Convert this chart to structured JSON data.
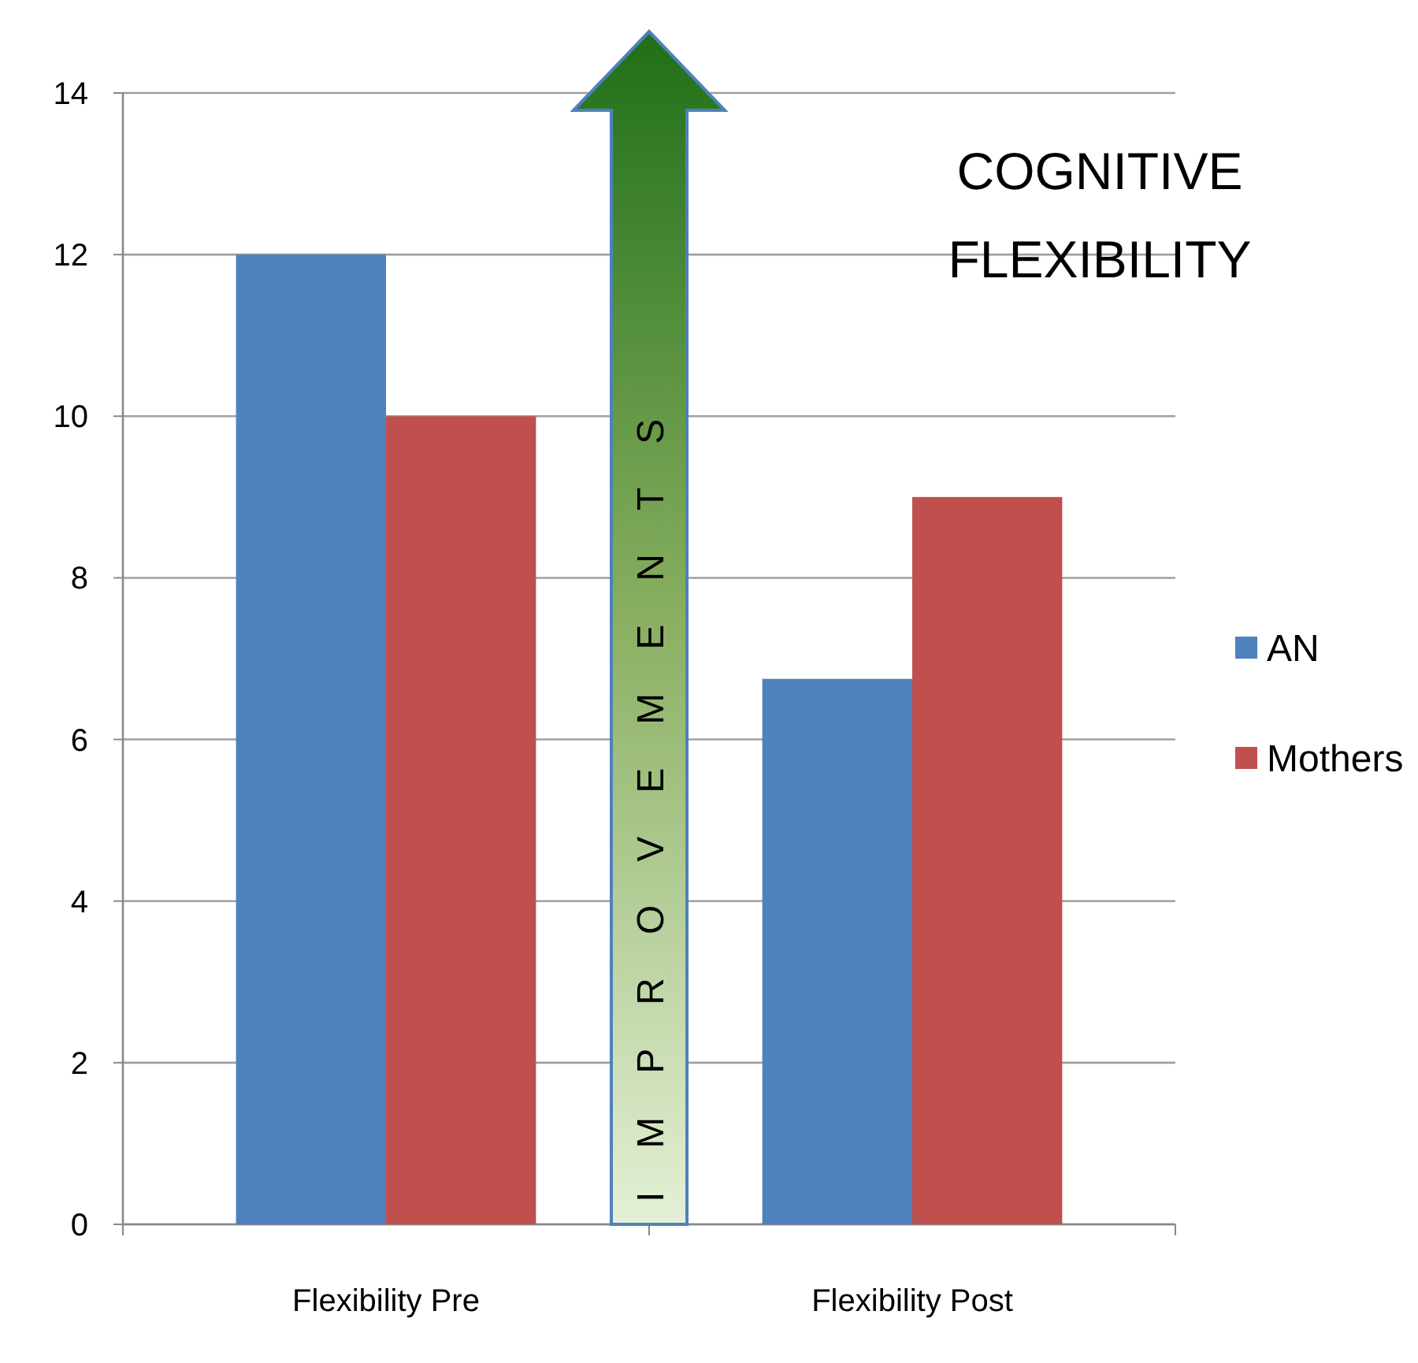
{
  "chart_data": {
    "type": "bar",
    "title": "COGNITIVE FLEXIBILITY",
    "categories": [
      "Flexibility Pre",
      "Flexibility Post"
    ],
    "series": [
      {
        "name": "AN",
        "color": "#4f81bd",
        "values": [
          12,
          6.75
        ]
      },
      {
        "name": "Mothers",
        "color": "#c0504d",
        "values": [
          10,
          9
        ]
      }
    ],
    "ylim": [
      0,
      14
    ],
    "yticks": [
      0,
      2,
      4,
      6,
      8,
      10,
      12,
      14
    ],
    "grid": "y",
    "legend": "right",
    "annotations": [
      "IMPROVEMENTS"
    ]
  }
}
